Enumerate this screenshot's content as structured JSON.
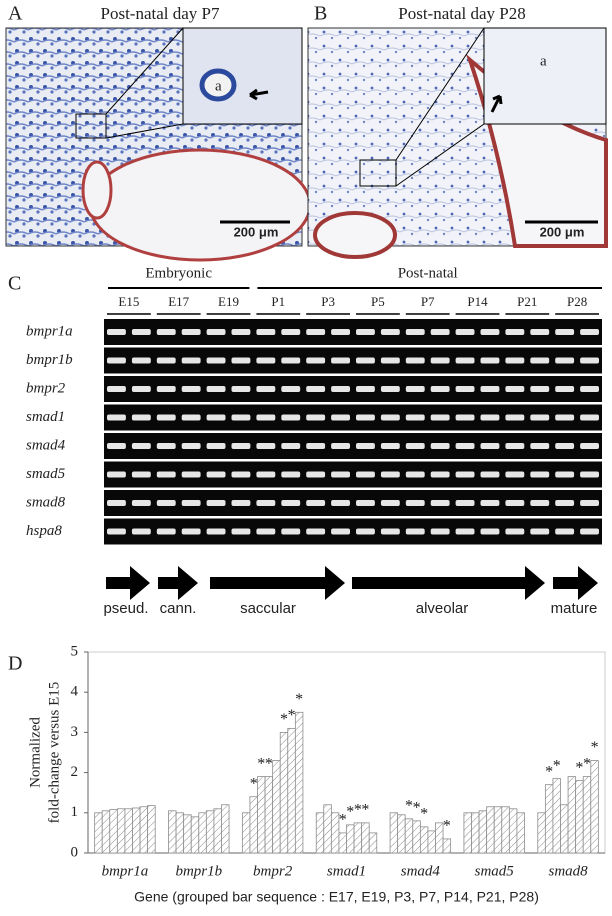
{
  "panels": {
    "A": {
      "label": "A",
      "title": "Post-natal day P7",
      "scale_bar": "200 μm",
      "inset_label": "a"
    },
    "B": {
      "label": "B",
      "title": "Post-natal day P28",
      "scale_bar": "200 μm",
      "inset_label": "a"
    },
    "C": {
      "label": "C",
      "groups": [
        "Embryonic",
        "Post-natal"
      ],
      "stages": [
        "E15",
        "E17",
        "E19",
        "P1",
        "P3",
        "P5",
        "P7",
        "P14",
        "P21",
        "P28"
      ],
      "genes": [
        "bmpr1a",
        "bmpr1b",
        "bmpr2",
        "smad1",
        "smad4",
        "smad5",
        "smad8",
        "hspa8"
      ],
      "phases": [
        "pseud.",
        "cann.",
        "saccular",
        "alveolar",
        "mature"
      ]
    }
  },
  "chart_data": {
    "type": "bar",
    "panel_label": "D",
    "y_label": [
      "Normalized",
      "fold-change versus E15"
    ],
    "x_label": "Gene (grouped bar sequence : E17, E19, P3, P7, P14, P21, P28)",
    "categories": [
      "bmpr1a",
      "bmpr1b",
      "bmpr2",
      "smad1",
      "smad4",
      "smad5",
      "smad8"
    ],
    "color": "#8c8c8c",
    "ylim": [
      0,
      5
    ],
    "yticks": [
      0,
      1,
      2,
      3,
      4,
      5
    ],
    "series": [
      {
        "values": [
          1.0,
          1.05,
          1.0,
          1.0,
          1.0,
          1.0,
          1.0
        ],
        "significance": [
          null,
          null,
          null,
          null,
          null,
          null,
          null
        ]
      },
      {
        "values": [
          1.05,
          1.0,
          1.4,
          1.2,
          0.95,
          1.0,
          1.7
        ],
        "significance": [
          null,
          null,
          "*",
          null,
          null,
          null,
          "*"
        ]
      },
      {
        "values": [
          1.08,
          0.95,
          1.9,
          1.0,
          0.85,
          1.05,
          1.85
        ],
        "significance": [
          null,
          null,
          "*",
          null,
          "*",
          null,
          "*"
        ]
      },
      {
        "values": [
          1.1,
          0.9,
          1.9,
          0.5,
          0.8,
          1.15,
          1.2
        ],
        "significance": [
          null,
          null,
          "*",
          "*",
          "*",
          null,
          null
        ]
      },
      {
        "values": [
          1.1,
          1.0,
          2.3,
          0.7,
          0.65,
          1.15,
          1.9
        ],
        "significance": [
          null,
          null,
          null,
          "*",
          "*",
          null,
          null
        ]
      },
      {
        "values": [
          1.12,
          1.05,
          3.0,
          0.75,
          0.55,
          1.15,
          1.8
        ],
        "significance": [
          null,
          null,
          "*",
          "*",
          null,
          null,
          "*"
        ]
      },
      {
        "values": [
          1.15,
          1.1,
          3.1,
          0.75,
          0.75,
          1.1,
          1.9
        ],
        "significance": [
          null,
          null,
          "*",
          "*",
          null,
          null,
          "*"
        ]
      },
      {
        "values": [
          1.18,
          1.2,
          3.5,
          0.5,
          0.35,
          1.0,
          2.3
        ],
        "significance": [
          null,
          null,
          "*",
          null,
          "*",
          null,
          "*"
        ]
      }
    ]
  }
}
